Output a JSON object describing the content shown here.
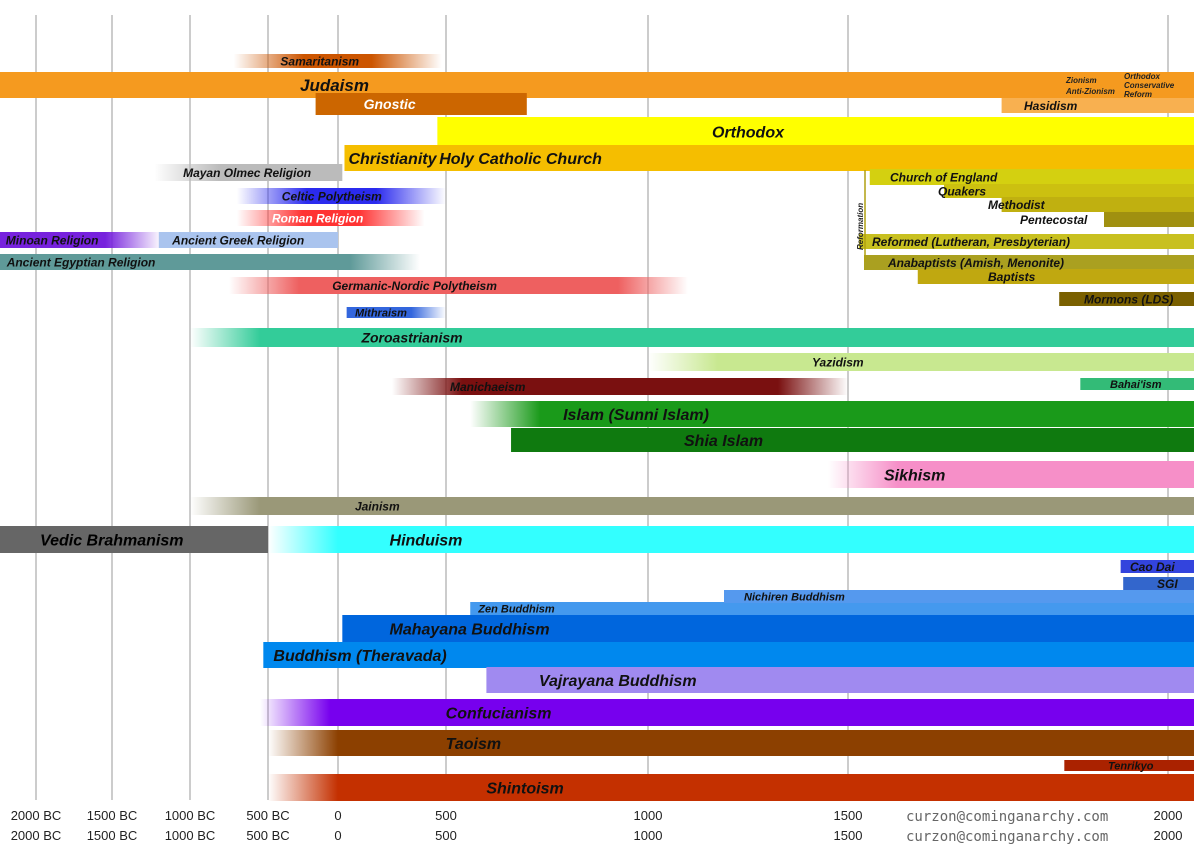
{
  "chart_data": {
    "type": "bar",
    "title": "",
    "xlabel": "",
    "ylabel": "",
    "xlim": [
      -2400,
      2010
    ],
    "x_ticks": [
      -2000,
      -1500,
      -1000,
      -500,
      0,
      500,
      1000,
      1500,
      2000
    ],
    "x_tick_labels": [
      "2000 BC",
      "1500 BC",
      "1000 BC",
      "500 BC",
      "0",
      "500",
      "1000",
      "1500",
      "2000"
    ],
    "grid": true,
    "credit": "curzon@cominganarchy.com",
    "series": [
      {
        "name": "Samaritanism",
        "start": -720,
        "end": 480,
        "color": "#cc5500",
        "fade_start": true,
        "fade_end": true,
        "label_x": -440
      },
      {
        "name": "Judaism",
        "start": -2400,
        "end": 2010,
        "color": "#f59a1f",
        "label_x": -300
      },
      {
        "name": "Gnostic",
        "start": -160,
        "end": 700,
        "color": "#cc6600",
        "label_x": 100
      },
      {
        "name": "Hasidism",
        "start": 1740,
        "end": 2010,
        "color": "#f8b050"
      },
      {
        "name": "Orthodox",
        "start": 460,
        "end": 2010,
        "color": "#ffff00",
        "label_x": 1150
      },
      {
        "name": "Christianity",
        "start": 30,
        "end": 2010,
        "color": "#f5be00",
        "label_x": 30
      },
      {
        "name": "Holy Catholic Church",
        "start": 30,
        "end": 2010,
        "color": "#f5be00",
        "label_x": 450
      },
      {
        "name": "Mayan Olmec Religion",
        "start": -1230,
        "end": 20,
        "color": "#bbbbbb",
        "fade_start": true,
        "label_x": -1070
      },
      {
        "name": "Celtic Polytheism",
        "start": -700,
        "end": 500,
        "color": "#2b2bee",
        "fade_start": true,
        "fade_end": true,
        "label_x": -430
      },
      {
        "name": "Roman Religion",
        "start": -700,
        "end": 400,
        "color": "#ff3333",
        "fade_start": true,
        "fade_end": true,
        "label_x": -500
      },
      {
        "name": "Minoan Religion",
        "start": -2400,
        "end": -1180,
        "color": "#7722dd",
        "fade_end": true,
        "label_x": -2380
      },
      {
        "name": "Ancient Greek Religion",
        "start": -1200,
        "end": 0,
        "color": "#aac4ee",
        "label_x": -1140
      },
      {
        "name": "Ancient Egyptian Religion",
        "start": -2400,
        "end": 380,
        "color": "#5f9a99",
        "fade_end": true,
        "label_x": -2370
      },
      {
        "name": "Germanic-Nordic Polytheism",
        "start": -750,
        "end": 1100,
        "color": "#ee6060",
        "fade_start": true,
        "fade_end": true,
        "label_x": -70
      },
      {
        "name": "Mithraism",
        "start": 40,
        "end": 500,
        "color": "#3366dd",
        "fade_end": true,
        "label_x": 60
      },
      {
        "name": "Zoroastrianism",
        "start": -1000,
        "end": 2010,
        "color": "#33cc99",
        "fade_start": true,
        "label_x": 90
      },
      {
        "name": "Yazidism",
        "start": 1000,
        "end": 2010,
        "color": "#c8e890",
        "fade_start": true,
        "label_x": 1400
      },
      {
        "name": "Manichaeism",
        "start": 250,
        "end": 1500,
        "color": "#7a1010",
        "fade_start": true,
        "fade_end": true,
        "label_x": 500
      },
      {
        "name": "Islam (Sunni Islam)",
        "start": 560,
        "end": 2010,
        "color": "#1a9a1a",
        "fade_start": true,
        "label_x": 780
      },
      {
        "name": "Shia Islam",
        "start": 661,
        "end": 2010,
        "color": "#0f7a0f",
        "label_x": 1080
      },
      {
        "name": "Sikhism",
        "start": 1450,
        "end": 2010,
        "color": "#f68fc8",
        "fade_start": true,
        "label_x": 1550
      },
      {
        "name": "Jainism",
        "start": -1000,
        "end": 2010,
        "color": "#9a9878",
        "fade_start": true,
        "label_x": 60
      },
      {
        "name": "Vedic Brahmanism",
        "start": -2400,
        "end": -500,
        "color": "#666666",
        "label_x": -2000
      },
      {
        "name": "Hinduism",
        "start": -500,
        "end": 2010,
        "color": "#33ffff",
        "fade_start": true,
        "label_x": 220
      },
      {
        "name": "Buddhism (Theravada)",
        "start": -530,
        "end": 2010,
        "color": "#0088ee",
        "label_x": -490
      },
      {
        "name": "Mahayana Buddhism",
        "start": 20,
        "end": 2010,
        "color": "#0066dd",
        "label_x": 220
      },
      {
        "name": "Zen Buddhism",
        "start": 560,
        "end": 2010,
        "color": "#4499ee",
        "label_x": 570
      },
      {
        "name": "Nichiren Buddhism",
        "start": 1190,
        "end": 2010,
        "color": "#5599ee",
        "label_x": 1230
      },
      {
        "name": "Cao Dai",
        "start": 1926,
        "end": 2010,
        "color": "#3344dd"
      },
      {
        "name": "SGI",
        "start": 1930,
        "end": 2010,
        "color": "#3366cc"
      },
      {
        "name": "Vajrayana Buddhism",
        "start": 600,
        "end": 2010,
        "color": "#a08af0",
        "label_x": 720
      },
      {
        "name": "Confucianism",
        "start": -550,
        "end": 2010,
        "color": "#7700ee",
        "fade_start": true,
        "label_x": 480
      },
      {
        "name": "Taoism",
        "start": -500,
        "end": 2010,
        "color": "#8c4000",
        "fade_start": true,
        "label_x": 480
      },
      {
        "name": "Tenrikyo",
        "start": 1838,
        "end": 2010,
        "color": "#aa2200"
      },
      {
        "name": "Shintoism",
        "start": -500,
        "end": 2010,
        "color": "#c43000",
        "fade_start": true,
        "label_x": 590
      },
      {
        "name": "Church of England",
        "start": 1534,
        "end": 2010,
        "color": "#d4d010"
      },
      {
        "name": "Quakers",
        "start": 1650,
        "end": 2010,
        "color": "#ccc010"
      },
      {
        "name": "Methodist",
        "start": 1740,
        "end": 2010,
        "color": "#c0b010"
      },
      {
        "name": "Pentecostal",
        "start": 1900,
        "end": 2010,
        "color": "#a09010"
      },
      {
        "name": "Reformed (Lutheran, Presbyterian)",
        "start": 1517,
        "end": 2010,
        "color": "#c8c020"
      },
      {
        "name": "Anabaptists (Amish, Menonite)",
        "start": 1525,
        "end": 2010,
        "color": "#aaa020"
      },
      {
        "name": "Baptists",
        "start": 1609,
        "end": 2010,
        "color": "#c0a810"
      },
      {
        "name": "Mormons (LDS)",
        "start": 1830,
        "end": 2010,
        "color": "#7a6000"
      },
      {
        "name": "Bahai'ism",
        "start": 1863,
        "end": 2010,
        "color": "#33bb77"
      }
    ],
    "annotations": [
      "Zionism",
      "Anti-Zionism",
      "Orthodox",
      "Conservative",
      "Reform",
      "Reformation"
    ]
  }
}
